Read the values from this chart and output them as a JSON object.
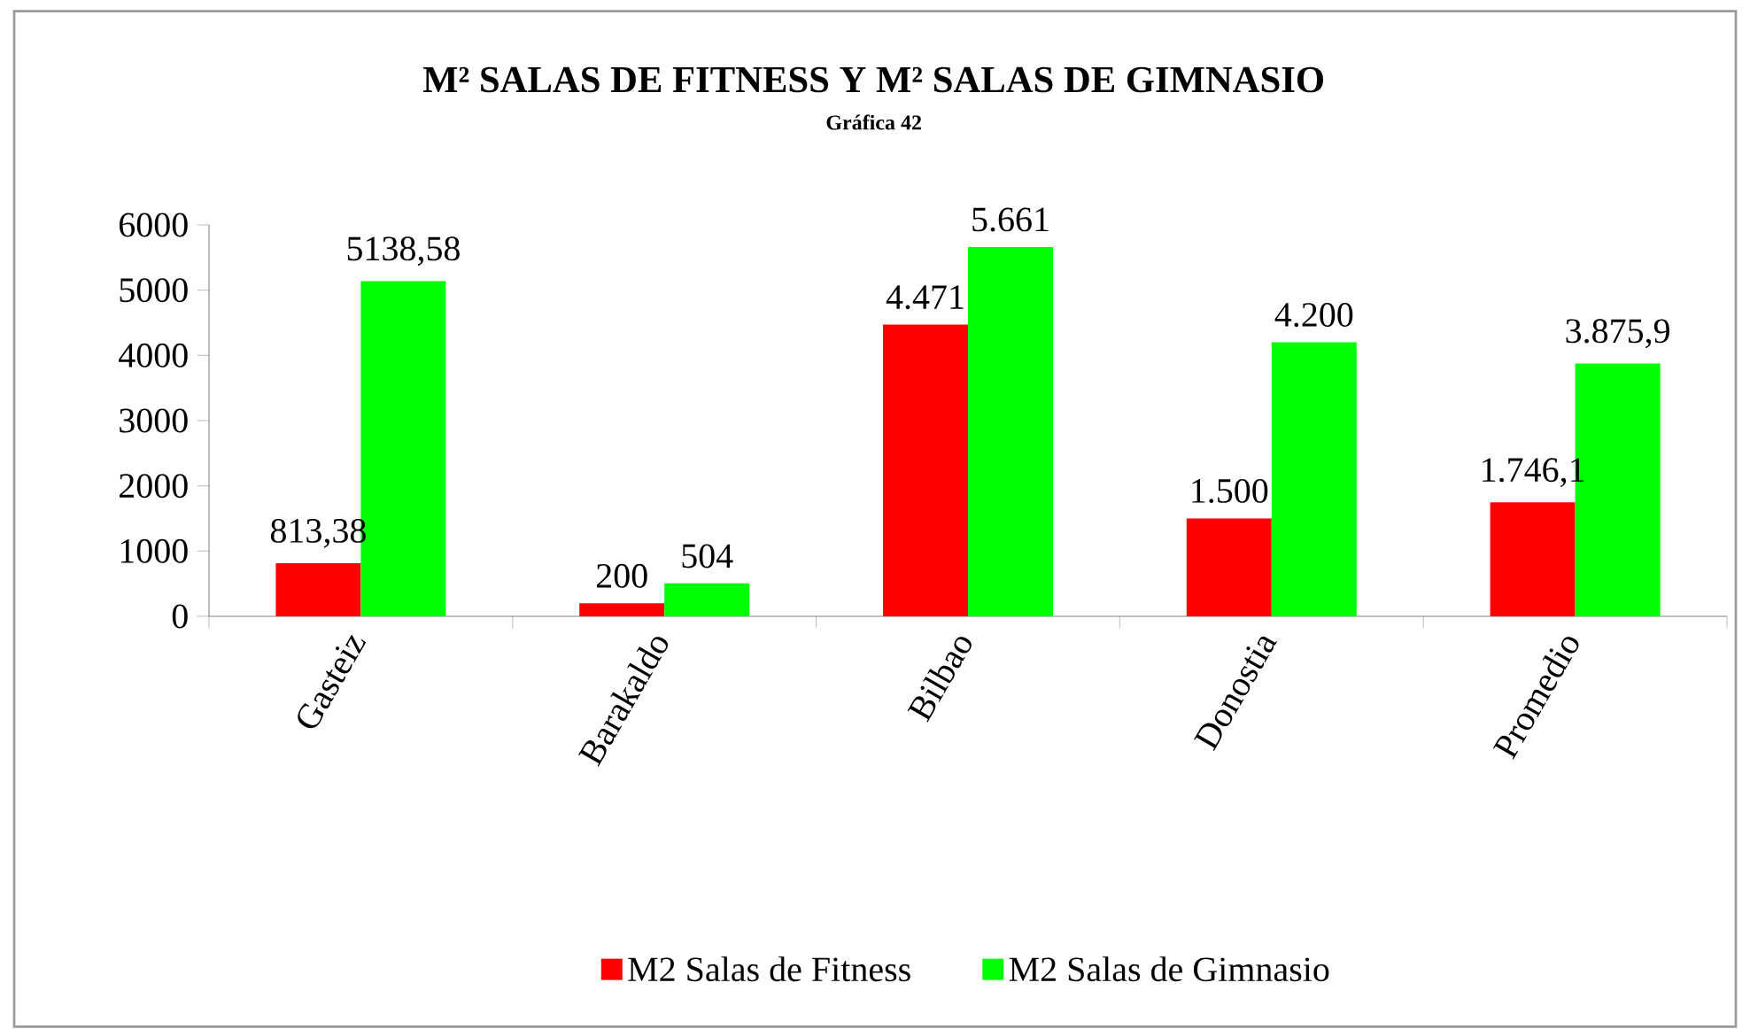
{
  "chart_data": {
    "type": "bar",
    "title": "M² SALAS DE FITNESS Y M² SALAS DE GIMNASIO",
    "subtitle": "Gráfica 42",
    "categories": [
      "Gasteiz",
      "Barakaldo",
      "Bilbao",
      "Donostia",
      "Promedio"
    ],
    "series": [
      {
        "name": "M2 Salas de Fitness",
        "color": "#ff0000",
        "values": [
          813.38,
          200,
          4471,
          1500,
          1746.1
        ],
        "value_labels": [
          "813,38",
          "200",
          "4.471",
          "1.500",
          "1.746,1"
        ]
      },
      {
        "name": "M2 Salas de Gimnasio",
        "color": "#00ff00",
        "values": [
          5138.58,
          504,
          5661,
          4200,
          3875.9
        ],
        "value_labels": [
          "5138,58",
          "504",
          "5.661",
          "4.200",
          "3.875,9"
        ]
      }
    ],
    "ylim": [
      0,
      6000
    ],
    "yticks": [
      0,
      1000,
      2000,
      3000,
      4000,
      5000,
      6000
    ],
    "grid": false,
    "legend": "bottom"
  }
}
